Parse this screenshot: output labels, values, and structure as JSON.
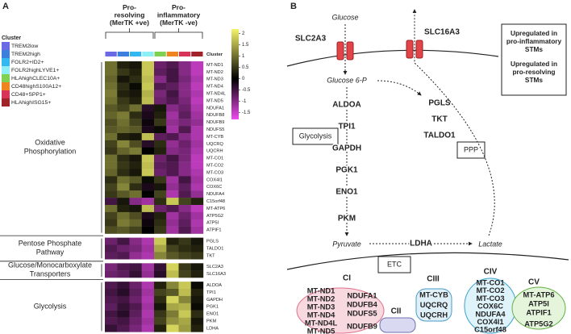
{
  "panel_labels": [
    "A",
    "B"
  ],
  "chart_data": {
    "type": "heatmap",
    "legend_title": "Cluster",
    "strip_label": "Cluster",
    "column_groups": [
      {
        "lines": [
          "Pro-",
          "resolving",
          "(MerTK +ve)"
        ]
      },
      {
        "lines": [
          "Pro-",
          "inflammatory",
          "(MerTK -ve)"
        ]
      }
    ],
    "columns": [
      {
        "name": "TREM2low",
        "color": "#6a6ae6"
      },
      {
        "name": "TREM2high",
        "color": "#3d7fdc"
      },
      {
        "name": "FOLR2+ID2+",
        "color": "#33b8ef"
      },
      {
        "name": "FOLR2highLYVE1+",
        "color": "#8eeef5"
      },
      {
        "name": "HLAhighCLEC10A+",
        "color": "#7fd152"
      },
      {
        "name": "CD48highS100A12+",
        "color": "#f0841e"
      },
      {
        "name": "CD48+SPP1+",
        "color": "#d8345a"
      },
      {
        "name": "HLAhighISG15+",
        "color": "#a12228"
      }
    ],
    "zlim": [
      -1.8,
      2.2
    ],
    "zticks": [
      2,
      1.5,
      1,
      0.5,
      0,
      -0.5,
      -1,
      -1.5
    ],
    "colormap": {
      "low": "#f04cf0",
      "mid": "#000000",
      "high": "#f5f56a"
    },
    "groups": [
      {
        "lines": [
          "Oxidative",
          "Phosphorylation"
        ],
        "rows": [
          "MT-ND1",
          "MT-ND2",
          "MT-ND3",
          "MT-ND4",
          "MT-ND4L",
          "MT-ND5",
          "NDUFA1",
          "NDUFB8",
          "NDUFB9",
          "NDUFS5",
          "MT-CYB",
          "UQCRQ",
          "UQCRH",
          "MT-CO1",
          "MT-CO2",
          "MT-CO3",
          "COX4I1",
          "COX6C",
          "NDUFA4",
          "C15orf48",
          "MT-ATP6",
          "ATP5G2",
          "ATP5I",
          "ATPIF1"
        ],
        "values": [
          [
            1,
            0.3,
            0.2,
            1.8,
            -0.8,
            -0.6,
            -1,
            -1.4
          ],
          [
            1,
            0.5,
            0.3,
            1.8,
            -0.7,
            -0.5,
            -1,
            -1.4
          ],
          [
            0.9,
            0.2,
            0.4,
            1.7,
            -1,
            -0.5,
            -0.9,
            -1.3
          ],
          [
            1,
            0.4,
            0.1,
            1.8,
            -0.6,
            -0.7,
            -1,
            -1.4
          ],
          [
            1.1,
            0.3,
            0.2,
            1.6,
            -0.9,
            -0.5,
            -1,
            -1.3
          ],
          [
            1,
            0.5,
            0.3,
            1.7,
            -0.8,
            -0.6,
            -0.9,
            -1.4
          ],
          [
            0.8,
            0.6,
            1,
            -0.3,
            0.2,
            -1,
            -0.8,
            -1.3
          ],
          [
            0.9,
            1.1,
            0.4,
            -0.2,
            0.3,
            -1.2,
            -0.7,
            -1.2
          ],
          [
            0.7,
            1,
            0.6,
            -0.1,
            0.5,
            -1.1,
            -0.9,
            -1.1
          ],
          [
            0.8,
            0.9,
            0.8,
            -0.2,
            0.1,
            -1.2,
            -0.6,
            -1.3
          ],
          [
            1,
            0.3,
            0.2,
            1.7,
            -0.7,
            -0.6,
            -1,
            -1.3
          ],
          [
            0.6,
            1.2,
            0.7,
            -0.3,
            0.4,
            -1.1,
            -0.8,
            -1.2
          ],
          [
            0.5,
            0.9,
            1.1,
            0,
            0.3,
            -1,
            -0.9,
            -1.3
          ],
          [
            1,
            0.4,
            0.2,
            1.8,
            -0.8,
            -0.5,
            -0.9,
            -1.4
          ],
          [
            1,
            0.5,
            0.3,
            1.7,
            -0.7,
            -0.6,
            -1,
            -1.4
          ],
          [
            0.9,
            0.4,
            0.2,
            1.8,
            -0.8,
            -0.6,
            -1,
            -1.3
          ],
          [
            0.4,
            1,
            0.8,
            0.1,
            0.5,
            -1.2,
            -0.5,
            -1.2
          ],
          [
            0.6,
            1.2,
            0.4,
            -0.2,
            0.2,
            -1.1,
            -0.7,
            -1.3
          ],
          [
            0.5,
            0.8,
            1,
            0,
            0.6,
            -1.3,
            -0.6,
            -1.1
          ],
          [
            -0.5,
            0.2,
            -1,
            -1.2,
            0.4,
            1.8,
            0.6,
            0.3
          ],
          [
            1,
            0.3,
            0.2,
            1.7,
            -0.8,
            -0.6,
            -1,
            -1.4
          ],
          [
            0.6,
            1,
            0.7,
            -0.2,
            0.3,
            -1.2,
            -0.8,
            -1.2
          ],
          [
            0.5,
            1.1,
            0.9,
            -0.1,
            0.4,
            -1.1,
            -0.7,
            -1.3
          ],
          [
            0.7,
            0.8,
            0.6,
            0,
            0.5,
            -1.2,
            -0.6,
            -1.2
          ]
        ]
      },
      {
        "lines": [
          "Pentose Phosphate",
          "Pathway"
        ],
        "rows": [
          "PGLS",
          "TALDO1",
          "TKT"
        ],
        "values": [
          [
            -0.8,
            -0.5,
            -1,
            -1.3,
            1.8,
            0.3,
            0.5,
            0.2
          ],
          [
            -0.6,
            -0.8,
            -0.9,
            -1.2,
            1.5,
            0.6,
            0.4,
            0.3
          ],
          [
            -0.7,
            -0.6,
            -1.1,
            -1.3,
            1.2,
            0.8,
            0.6,
            0.5
          ]
        ]
      },
      {
        "lines": [
          "Glucose/Monocarboxylate",
          "Transporters"
        ],
        "rows": [
          "SLC2A3",
          "SLC16A3"
        ],
        "values": [
          [
            -0.9,
            -0.6,
            -0.5,
            -1.2,
            -0.4,
            1.9,
            0.5,
            0.2
          ],
          [
            -0.8,
            -0.7,
            -0.4,
            -1.1,
            -0.3,
            1.7,
            0.6,
            0.3
          ]
        ]
      },
      {
        "lines": [
          "Glycolysis"
        ],
        "rows": [
          "ALDOA",
          "TPI1",
          "GAPDH",
          "PGK1",
          "ENO1",
          "PKM",
          "LDHA"
        ],
        "values": [
          [
            -0.6,
            -0.4,
            -0.8,
            -1.3,
            0.3,
            1.2,
            1.8,
            0.1
          ],
          [
            -0.5,
            -0.3,
            -0.7,
            -1.2,
            0.6,
            0.8,
            1.7,
            0.3
          ],
          [
            -0.6,
            -0.5,
            -0.8,
            -1.3,
            0.4,
            1.9,
            1.2,
            0.2
          ],
          [
            -0.7,
            -0.4,
            -0.6,
            -1.2,
            0.2,
            1.5,
            1.6,
            0.1
          ],
          [
            -0.5,
            -0.3,
            -0.7,
            -1.3,
            0.5,
            1.1,
            1.8,
            0.4
          ],
          [
            -0.6,
            -0.5,
            -0.8,
            -1.2,
            0.6,
            1.3,
            1.5,
            0.2
          ],
          [
            -0.4,
            -0.6,
            -0.9,
            -1.3,
            0.3,
            1.9,
            1.4,
            0.3
          ]
        ]
      }
    ]
  },
  "diagram": {
    "red": "#e8302a",
    "blue": "#3a7fc8",
    "legend_red": [
      "Upregulated in",
      "pro-inflammatory",
      "STMs"
    ],
    "legend_blue": [
      "Upregulated in",
      "pro-resolving",
      "STMs"
    ],
    "glucose": "Glucose",
    "g6p": "Glucose 6-P",
    "pyruvate": "Pyruvate",
    "lactate": "Lactate",
    "transporters": [
      "SLC2A3",
      "SLC16A3"
    ],
    "glycolysis_label": "Glycolysis",
    "ppp_label": "PPP",
    "etc_label": "ETC",
    "glycolysis_enzymes": [
      "ALDOA",
      "TPI1",
      "GAPDH",
      "PGK1",
      "ENO1",
      "PKM"
    ],
    "ppp_enzymes": [
      "PGLS",
      "TKT",
      "TALDO1"
    ],
    "ldha": "LDHA",
    "complexes": [
      {
        "name": "CI",
        "genes": [
          {
            "name": "MT-ND1",
            "color": "#3a7fc8"
          },
          {
            "name": "MT-ND2",
            "color": "#3a7fc8"
          },
          {
            "name": "MT-ND3",
            "color": "#3a7fc8"
          },
          {
            "name": "MT-ND4",
            "color": "#3a7fc8"
          },
          {
            "name": "MT-ND4L",
            "color": "#3a7fc8"
          },
          {
            "name": "MT-ND5",
            "color": "#3a7fc8"
          },
          {
            "name": "NDUFA1",
            "color": "#3a7fc8"
          },
          {
            "name": "NDUFB4",
            "color": "#3a7fc8"
          },
          {
            "name": "NDUFS5",
            "color": "#3a7fc8"
          },
          {
            "name": "NDUFB9",
            "color": "#e8302a"
          }
        ]
      },
      {
        "name": "CII",
        "genes": []
      },
      {
        "name": "CIII",
        "genes": [
          {
            "name": "MT-CYB",
            "color": "#3a7fc8"
          },
          {
            "name": "UQCRQ",
            "color": "#3a7fc8"
          },
          {
            "name": "UQCRH",
            "color": "#e8302a"
          }
        ]
      },
      {
        "name": "CIV",
        "genes": [
          {
            "name": "MT-CO1",
            "color": "#3a7fc8"
          },
          {
            "name": "MT-CO2",
            "color": "#3a7fc8"
          },
          {
            "name": "MT-CO3",
            "color": "#3a7fc8"
          },
          {
            "name": "COX6C",
            "color": "#3a7fc8"
          },
          {
            "name": "NDUFA4",
            "color": "#3a7fc8"
          },
          {
            "name": "COX4I1",
            "color": "#e8302a"
          },
          {
            "name": "C15orf48",
            "color": "#e8302a"
          }
        ]
      },
      {
        "name": "CV",
        "genes": [
          {
            "name": "MT-ATP6",
            "color": "#3a7fc8"
          },
          {
            "name": "ATP5I",
            "color": "#3a7fc8"
          },
          {
            "name": "ATPIF1",
            "color": "#3a7fc8"
          },
          {
            "name": "ATP5G2",
            "color": "#e8302a"
          }
        ]
      }
    ]
  }
}
